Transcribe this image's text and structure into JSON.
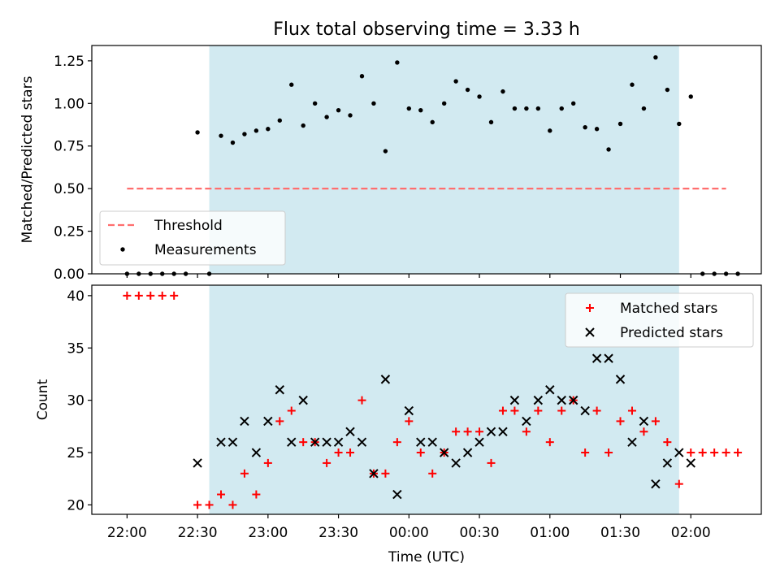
{
  "figure": {
    "title": "Flux total observing time = 3.33 h",
    "xlabel": "Time (UTC)"
  },
  "colors": {
    "span": "#add8e6",
    "threshold": "#ff6e6e",
    "measurement": "#000000",
    "matched": "#ff0000",
    "predicted": "#000000"
  },
  "chart_data": [
    {
      "type": "scatter",
      "panel": "top",
      "title": "Flux total observing time = 3.33 h",
      "ylabel": "Matched/Predicted stars",
      "xlim": [
        "21:45",
        "02:30"
      ],
      "ylim": [
        0,
        1.34
      ],
      "yticks": [
        "0.00",
        "0.25",
        "0.50",
        "0.75",
        "1.00",
        "1.25"
      ],
      "span": {
        "start": "22:35",
        "end": "01:55"
      },
      "threshold": {
        "name": "Threshold",
        "y": 0.5,
        "x_start": "22:00",
        "x_end": "02:15"
      },
      "legend": {
        "placement": "lower-left",
        "entries": [
          "Threshold",
          "Measurements"
        ]
      },
      "series": [
        {
          "name": "Measurements",
          "points": [
            [
              "22:00",
              0
            ],
            [
              "22:05",
              0
            ],
            [
              "22:10",
              0
            ],
            [
              "22:15",
              0
            ],
            [
              "22:20",
              0
            ],
            [
              "22:25",
              0
            ],
            [
              "22:30",
              0.83
            ],
            [
              "22:35",
              0
            ],
            [
              "22:40",
              0.81
            ],
            [
              "22:45",
              0.77
            ],
            [
              "22:50",
              0.82
            ],
            [
              "22:55",
              0.84
            ],
            [
              "23:00",
              0.85
            ],
            [
              "23:05",
              0.9
            ],
            [
              "23:10",
              1.11
            ],
            [
              "23:15",
              0.87
            ],
            [
              "23:20",
              1.0
            ],
            [
              "23:25",
              0.92
            ],
            [
              "23:30",
              0.96
            ],
            [
              "23:35",
              0.93
            ],
            [
              "23:40",
              1.16
            ],
            [
              "23:45",
              1.0
            ],
            [
              "23:50",
              0.72
            ],
            [
              "23:55",
              1.24
            ],
            [
              "00:00",
              0.97
            ],
            [
              "00:05",
              0.96
            ],
            [
              "00:10",
              0.89
            ],
            [
              "00:15",
              1.0
            ],
            [
              "00:20",
              1.13
            ],
            [
              "00:25",
              1.08
            ],
            [
              "00:30",
              1.04
            ],
            [
              "00:35",
              0.89
            ],
            [
              "00:40",
              1.07
            ],
            [
              "00:45",
              0.97
            ],
            [
              "00:50",
              0.97
            ],
            [
              "00:55",
              0.97
            ],
            [
              "01:00",
              0.84
            ],
            [
              "01:05",
              0.97
            ],
            [
              "01:10",
              1.0
            ],
            [
              "01:15",
              0.86
            ],
            [
              "01:20",
              0.85
            ],
            [
              "01:25",
              0.73
            ],
            [
              "01:30",
              0.88
            ],
            [
              "01:35",
              1.11
            ],
            [
              "01:40",
              0.97
            ],
            [
              "01:45",
              1.27
            ],
            [
              "01:50",
              1.08
            ],
            [
              "01:55",
              0.88
            ],
            [
              "02:00",
              1.04
            ],
            [
              "02:05",
              0
            ],
            [
              "02:10",
              0
            ],
            [
              "02:15",
              0
            ],
            [
              "02:20",
              0
            ]
          ]
        }
      ]
    },
    {
      "type": "scatter",
      "panel": "bottom",
      "ylabel": "Count",
      "xlabel": "Time (UTC)",
      "xlim": [
        "21:45",
        "02:30"
      ],
      "ylim": [
        19.1,
        41.0
      ],
      "yticks": [
        "20",
        "25",
        "30",
        "35",
        "40"
      ],
      "xticks": [
        "22:00",
        "22:30",
        "23:00",
        "23:30",
        "00:00",
        "00:30",
        "01:00",
        "01:30",
        "02:00"
      ],
      "span": {
        "start": "22:35",
        "end": "01:55"
      },
      "legend": {
        "placement": "top-right",
        "entries": [
          "Matched stars",
          "Predicted stars"
        ]
      },
      "series": [
        {
          "name": "Matched stars",
          "marker": "+",
          "points": [
            [
              "22:00",
              40
            ],
            [
              "22:05",
              40
            ],
            [
              "22:10",
              40
            ],
            [
              "22:15",
              40
            ],
            [
              "22:20",
              40
            ],
            [
              "22:30",
              20
            ],
            [
              "22:35",
              20
            ],
            [
              "22:40",
              21
            ],
            [
              "22:45",
              20
            ],
            [
              "22:50",
              23
            ],
            [
              "22:55",
              21
            ],
            [
              "23:00",
              24
            ],
            [
              "23:05",
              28
            ],
            [
              "23:10",
              29
            ],
            [
              "23:15",
              26
            ],
            [
              "23:20",
              26
            ],
            [
              "23:25",
              24
            ],
            [
              "23:30",
              25
            ],
            [
              "23:35",
              25
            ],
            [
              "23:40",
              30
            ],
            [
              "23:45",
              23
            ],
            [
              "23:50",
              23
            ],
            [
              "23:55",
              26
            ],
            [
              "00:00",
              28
            ],
            [
              "00:05",
              25
            ],
            [
              "00:10",
              23
            ],
            [
              "00:15",
              25
            ],
            [
              "00:20",
              27
            ],
            [
              "00:25",
              27
            ],
            [
              "00:30",
              27
            ],
            [
              "00:35",
              24
            ],
            [
              "00:40",
              29
            ],
            [
              "00:45",
              29
            ],
            [
              "00:50",
              27
            ],
            [
              "00:55",
              29
            ],
            [
              "01:00",
              26
            ],
            [
              "01:05",
              29
            ],
            [
              "01:10",
              30
            ],
            [
              "01:15",
              25
            ],
            [
              "01:20",
              29
            ],
            [
              "01:25",
              25
            ],
            [
              "01:30",
              28
            ],
            [
              "01:35",
              29
            ],
            [
              "01:40",
              27
            ],
            [
              "01:45",
              28
            ],
            [
              "01:50",
              26
            ],
            [
              "01:55",
              22
            ],
            [
              "02:00",
              25
            ],
            [
              "02:05",
              25
            ],
            [
              "02:10",
              25
            ],
            [
              "02:15",
              25
            ],
            [
              "02:20",
              25
            ]
          ]
        },
        {
          "name": "Predicted stars",
          "marker": "x",
          "points": [
            [
              "22:30",
              24
            ],
            [
              "22:40",
              26
            ],
            [
              "22:45",
              26
            ],
            [
              "22:50",
              28
            ],
            [
              "22:55",
              25
            ],
            [
              "23:00",
              28
            ],
            [
              "23:05",
              31
            ],
            [
              "23:10",
              26
            ],
            [
              "23:15",
              30
            ],
            [
              "23:20",
              26
            ],
            [
              "23:25",
              26
            ],
            [
              "23:30",
              26
            ],
            [
              "23:35",
              27
            ],
            [
              "23:40",
              26
            ],
            [
              "23:45",
              23
            ],
            [
              "23:50",
              32
            ],
            [
              "23:55",
              21
            ],
            [
              "00:00",
              29
            ],
            [
              "00:05",
              26
            ],
            [
              "00:10",
              26
            ],
            [
              "00:15",
              25
            ],
            [
              "00:20",
              24
            ],
            [
              "00:25",
              25
            ],
            [
              "00:30",
              26
            ],
            [
              "00:35",
              27
            ],
            [
              "00:40",
              27
            ],
            [
              "00:45",
              30
            ],
            [
              "00:50",
              28
            ],
            [
              "00:55",
              30
            ],
            [
              "01:00",
              31
            ],
            [
              "01:05",
              30
            ],
            [
              "01:10",
              30
            ],
            [
              "01:15",
              29
            ],
            [
              "01:20",
              34
            ],
            [
              "01:25",
              34
            ],
            [
              "01:30",
              32
            ],
            [
              "01:35",
              26
            ],
            [
              "01:40",
              28
            ],
            [
              "01:45",
              22
            ],
            [
              "01:50",
              24
            ],
            [
              "01:55",
              25
            ],
            [
              "02:00",
              24
            ]
          ]
        }
      ]
    }
  ]
}
